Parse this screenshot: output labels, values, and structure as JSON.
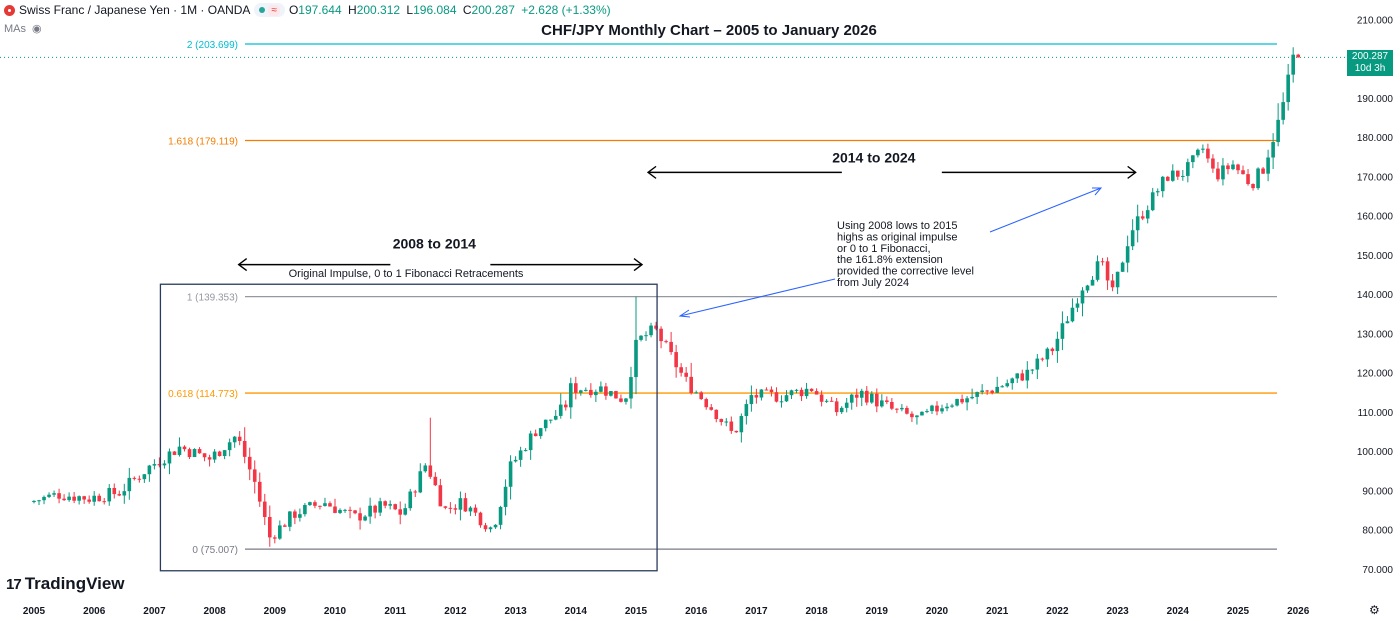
{
  "header": {
    "symbol": "Swiss Franc / Japanese Yen · 1M · OANDA",
    "approx_icon": "≈",
    "ohlc": [
      {
        "k": "O",
        "v": "197.644"
      },
      {
        "k": "H",
        "v": "200.312"
      },
      {
        "k": "L",
        "v": "196.084"
      },
      {
        "k": "C",
        "v": "200.287"
      }
    ],
    "change": "+2.628 (+1.33%)",
    "mas_label": "MAs",
    "eye_icon": "hidden-eye-icon"
  },
  "brand": {
    "logo_mark": "17",
    "name": "TradingView"
  },
  "price_tag": {
    "price": "200.287",
    "countdown": "10d 3h"
  },
  "colors": {
    "up": "#089981",
    "down": "#f23645",
    "fib_top": "#00bcd4",
    "fib_1618": "#f57c00",
    "fib_0618": "#ff9800",
    "fib_gray": "#787b86",
    "box": "#2a3a5e",
    "annotation_line": "#2962ff"
  },
  "chart_data": {
    "type": "candlestick",
    "title": "CHF/JPY Monthly Chart – 2005 to January 2026",
    "ylim": [
      65,
      212
    ],
    "y_ticks": [
      "210.000",
      "200.000",
      "190.000",
      "180.000",
      "170.000",
      "160.000",
      "150.000",
      "140.000",
      "130.000",
      "120.000",
      "110.000",
      "100.000",
      "90.000",
      "80.000",
      "70.000"
    ],
    "x_ticks": [
      "2005",
      "2006",
      "2007",
      "2008",
      "2009",
      "2010",
      "2011",
      "2012",
      "2013",
      "2014",
      "2015",
      "2016",
      "2017",
      "2018",
      "2019",
      "2020",
      "2021",
      "2022",
      "2023",
      "2024",
      "2025",
      "2026"
    ],
    "fib_levels": [
      {
        "label": "2 (203.699)",
        "value": 203.699,
        "color": "#00bcd4",
        "x_start_year": 2008.5
      },
      {
        "label": "1.618 (179.119)",
        "value": 179.119,
        "color": "#f57c00",
        "x_start_year": 2008.5
      },
      {
        "label": "1 (139.353)",
        "value": 139.353,
        "color": "#9598a1",
        "x_start_year": 2008.5
      },
      {
        "label": "0.618 (114.773)",
        "value": 114.773,
        "color": "#ff9800",
        "x_start_year": 2008.5
      },
      {
        "label": "0 (75.007)",
        "value": 75.007,
        "color": "#787b86",
        "x_start_year": 2008.5
      }
    ],
    "annotations": {
      "range1": {
        "label": "2008 to 2014",
        "from_year": 2008.4,
        "to_year": 2015.1,
        "y": 147.5
      },
      "range1_sub": "Original Impulse, 0 to 1 Fibonacci Retracements",
      "range2": {
        "label": "2014 to 2024",
        "from_year": 2015.2,
        "to_year": 2023.3,
        "y": 171
      },
      "note": [
        "Using 2008 lows to 2015",
        "highs as original impulse",
        "or 0 to 1 Fibonacci,",
        "the 161.8% extension",
        "provided the corrective level",
        "from July 2024"
      ],
      "box": {
        "from_year": 2007.1,
        "to_year": 2015.35,
        "y_top": 142.5,
        "y_bottom": 69.5
      }
    },
    "anchors": [
      [
        2005.0,
        87
      ],
      [
        2005.5,
        89
      ],
      [
        2006.0,
        88
      ],
      [
        2006.5,
        89.5
      ],
      [
        2007.0,
        96
      ],
      [
        2007.5,
        101
      ],
      [
        2008.0,
        98
      ],
      [
        2008.45,
        104
      ],
      [
        2008.75,
        92
      ],
      [
        2009.0,
        78
      ],
      [
        2009.4,
        84
      ],
      [
        2009.9,
        87
      ],
      [
        2010.4,
        83
      ],
      [
        2010.9,
        86
      ],
      [
        2011.2,
        84
      ],
      [
        2011.6,
        97
      ],
      [
        2011.9,
        85
      ],
      [
        2012.2,
        87
      ],
      [
        2012.7,
        80
      ],
      [
        2013.0,
        96
      ],
      [
        2013.4,
        105
      ],
      [
        2013.9,
        111
      ],
      [
        2014.0,
        116
      ],
      [
        2014.5,
        116
      ],
      [
        2014.9,
        113
      ],
      [
        2015.1,
        128
      ],
      [
        2015.4,
        131
      ],
      [
        2015.9,
        118
      ],
      [
        2016.4,
        110
      ],
      [
        2016.7,
        104
      ],
      [
        2017.0,
        114
      ],
      [
        2017.5,
        114
      ],
      [
        2018.0,
        116
      ],
      [
        2018.4,
        110
      ],
      [
        2018.8,
        115
      ],
      [
        2019.4,
        110
      ],
      [
        2019.8,
        108
      ],
      [
        2020.2,
        112
      ],
      [
        2020.7,
        114
      ],
      [
        2021.2,
        117
      ],
      [
        2021.6,
        120
      ],
      [
        2022.0,
        126
      ],
      [
        2022.5,
        142
      ],
      [
        2022.8,
        148
      ],
      [
        2023.0,
        140
      ],
      [
        2023.3,
        156
      ],
      [
        2023.6,
        163
      ],
      [
        2023.9,
        170
      ],
      [
        2024.2,
        171
      ],
      [
        2024.5,
        177
      ],
      [
        2024.7,
        170
      ],
      [
        2025.0,
        173
      ],
      [
        2025.3,
        168
      ],
      [
        2025.5,
        172
      ],
      [
        2025.8,
        186
      ],
      [
        2026.0,
        200.287
      ]
    ]
  }
}
